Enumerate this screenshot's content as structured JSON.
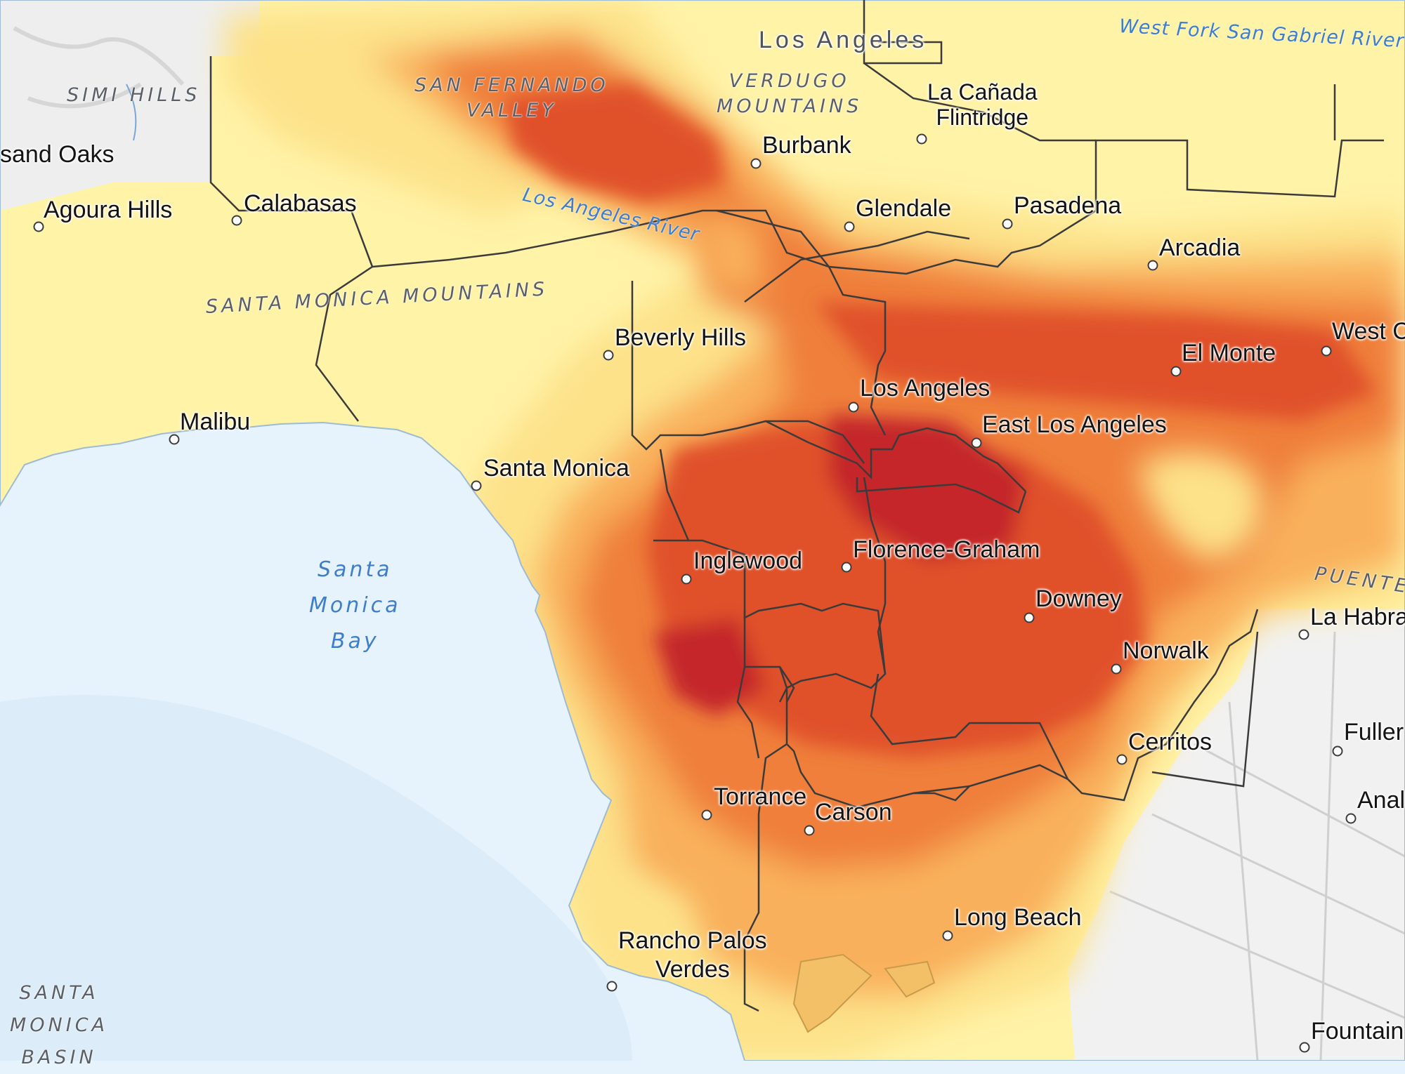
{
  "map": {
    "cities": [
      {
        "id": "thousand-oaks",
        "label": "sand Oaks"
      },
      {
        "id": "agoura-hills",
        "label": "Agoura Hills"
      },
      {
        "id": "calabasas",
        "label": "Calabasas"
      },
      {
        "id": "malibu",
        "label": "Malibu"
      },
      {
        "id": "santa-monica",
        "label": "Santa Monica"
      },
      {
        "id": "beverly-hills",
        "label": "Beverly Hills"
      },
      {
        "id": "burbank",
        "label": "Burbank"
      },
      {
        "id": "glendale",
        "label": "Glendale"
      },
      {
        "id": "la-canada",
        "label": "La Cañada\nFlintridge"
      },
      {
        "id": "pasadena",
        "label": "Pasadena"
      },
      {
        "id": "arcadia",
        "label": "Arcadia"
      },
      {
        "id": "el-monte",
        "label": "El Monte"
      },
      {
        "id": "west-covina",
        "label": "West C"
      },
      {
        "id": "los-angeles",
        "label": "Los Angeles"
      },
      {
        "id": "east-los-angeles",
        "label": "East Los Angeles"
      },
      {
        "id": "florence-graham",
        "label": "Florence-Graham"
      },
      {
        "id": "inglewood",
        "label": "Inglewood"
      },
      {
        "id": "downey",
        "label": "Downey"
      },
      {
        "id": "norwalk",
        "label": "Norwalk"
      },
      {
        "id": "la-habra",
        "label": "La Habra"
      },
      {
        "id": "fullerton",
        "label": "Fuller"
      },
      {
        "id": "cerritos",
        "label": "Cerritos"
      },
      {
        "id": "anaheim",
        "label": "Anal"
      },
      {
        "id": "torrance",
        "label": "Torrance"
      },
      {
        "id": "carson",
        "label": "Carson"
      },
      {
        "id": "rancho-palos-verdes",
        "label": "Rancho Palos\nVerdes"
      },
      {
        "id": "long-beach",
        "label": "Long Beach"
      },
      {
        "id": "fountain-valley",
        "label": "Fountain"
      }
    ],
    "top_city": "Los Angeles",
    "areas": [
      {
        "id": "simi-hills",
        "label": "SIMI HILLS"
      },
      {
        "id": "san-fernando-valley",
        "label": "SAN FERNANDO\nVALLEY"
      },
      {
        "id": "verdugo-mountains",
        "label": "VERDUGO\nMOUNTAINS"
      },
      {
        "id": "santa-monica-mountains",
        "label": "SANTA MONICA MOUNTAINS"
      },
      {
        "id": "puente-hills",
        "label": "PUENTE"
      },
      {
        "id": "santa-monica-basin",
        "label": "SANTA\nMONICA\nBASIN"
      }
    ],
    "water": [
      {
        "id": "santa-monica-bay",
        "label": "Santa\nMonica\nBay"
      }
    ],
    "rivers": [
      {
        "id": "los-angeles-river",
        "label": "Los Angeles River"
      },
      {
        "id": "west-fork",
        "label": "West Fork San Gabriel River"
      }
    ],
    "colors": {
      "ocean": "#e6f3fd",
      "land_low": "#fff3a8",
      "heat_1": "#fde28a",
      "heat_2": "#f9b05c",
      "heat_3": "#ef7f3a",
      "heat_4": "#e0512a",
      "heat_5": "#c4262b",
      "outside": "#f1f1f1"
    }
  }
}
